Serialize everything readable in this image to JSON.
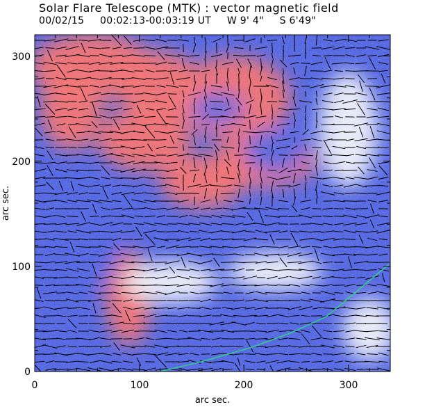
{
  "header": {
    "title": "Solar Flare Telescope (MTK) : vector magnetic field",
    "date": "00/02/15",
    "time_range": "00:02:13-00:03:19 UT",
    "lon": "W 9' 4\"",
    "lat": "S 6'49\""
  },
  "axes": {
    "xlabel": "arc sec.",
    "ylabel": "arc sec.",
    "xticks": [
      "0",
      "100",
      "200",
      "300"
    ],
    "yticks": [
      "0",
      "100",
      "200",
      "300"
    ],
    "xrange": [
      0,
      340
    ],
    "yrange": [
      0,
      320
    ]
  },
  "colors": {
    "positive": "#f26a6a",
    "negative": "#4a5ee0",
    "neutral": "#eef0f8",
    "vector": "#000000",
    "neutral_line": "#2fd08a"
  }
}
